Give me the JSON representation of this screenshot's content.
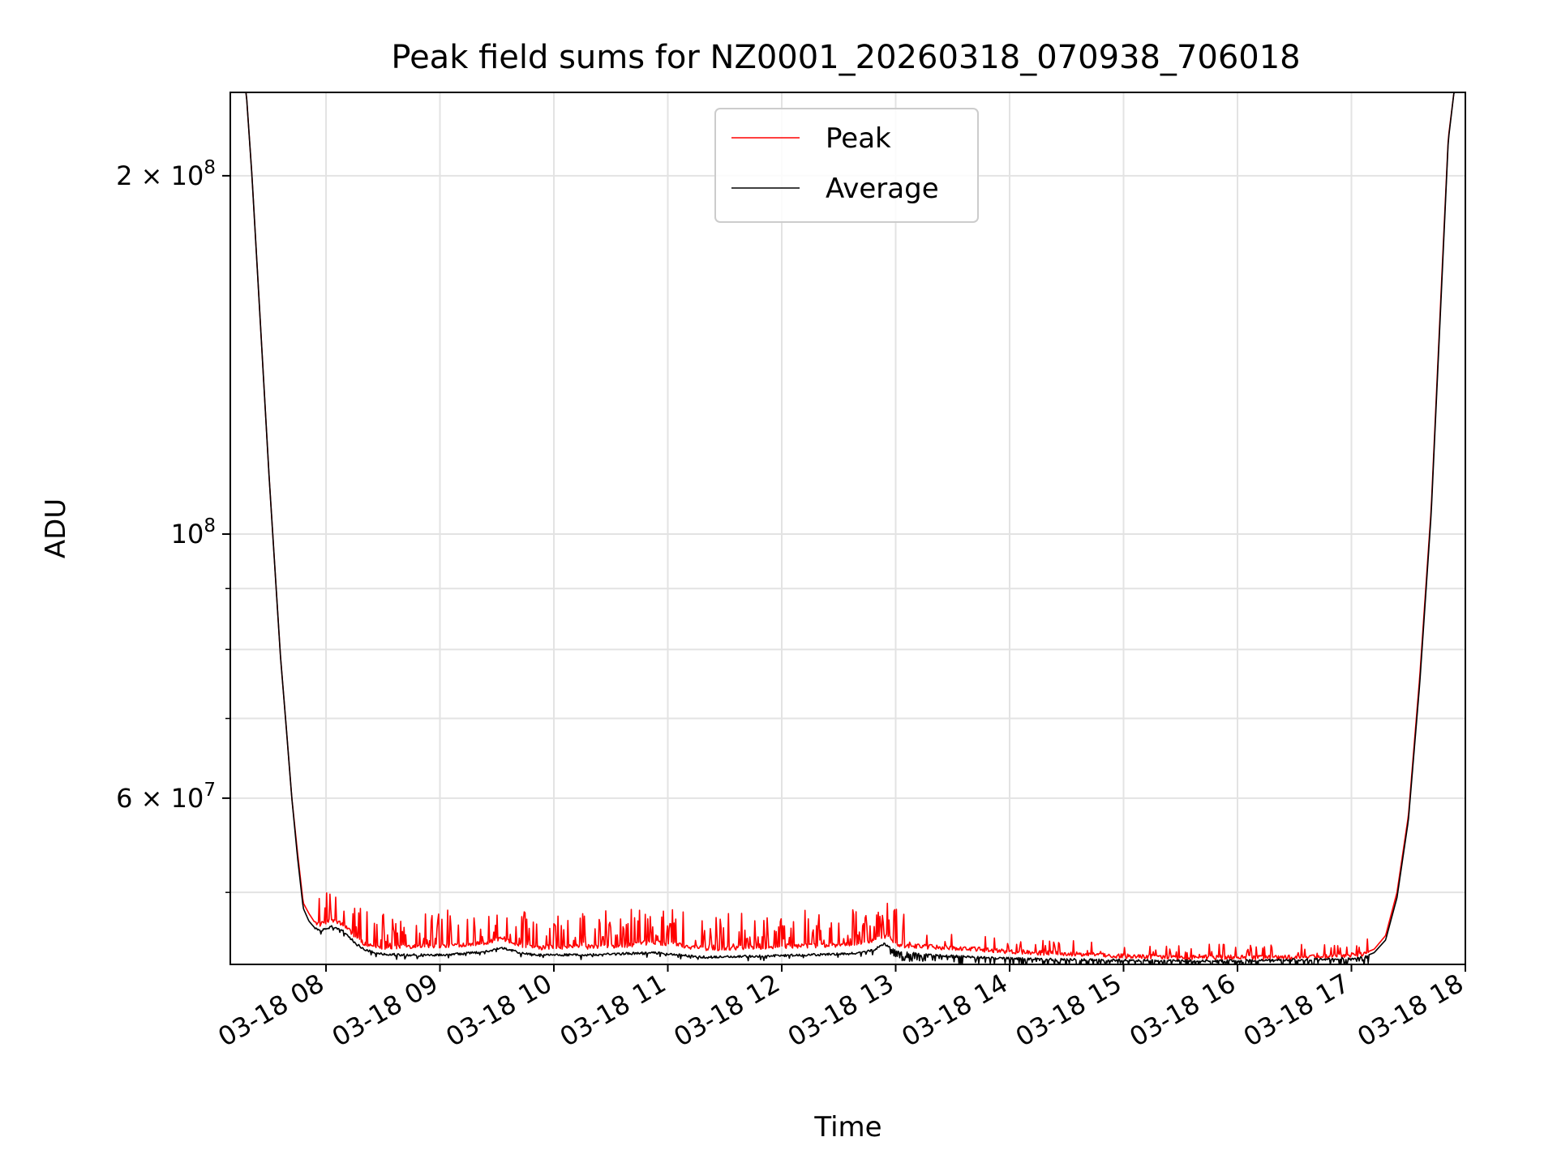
{
  "chart_data": {
    "type": "line",
    "title": "Peak field sums for NZ0001_20260318_070938_706018",
    "xlabel": "Time",
    "ylabel": "ADU",
    "yscale": "log",
    "grid": true,
    "legend_position": "upper center",
    "xlim_hours": [
      7.16,
      18.0
    ],
    "ylim": [
      43500000,
      235000000
    ],
    "x_ticks": [
      {
        "hour": 8,
        "label": "03-18 08"
      },
      {
        "hour": 9,
        "label": "03-18 09"
      },
      {
        "hour": 10,
        "label": "03-18 10"
      },
      {
        "hour": 11,
        "label": "03-18 11"
      },
      {
        "hour": 12,
        "label": "03-18 12"
      },
      {
        "hour": 13,
        "label": "03-18 13"
      },
      {
        "hour": 14,
        "label": "03-18 14"
      },
      {
        "hour": 15,
        "label": "03-18 15"
      },
      {
        "hour": 16,
        "label": "03-18 16"
      },
      {
        "hour": 17,
        "label": "03-18 17"
      },
      {
        "hour": 18,
        "label": "03-18 18"
      }
    ],
    "y_major_ticks": [
      {
        "value": 60000000,
        "mantissa": "6",
        "exponent": "7"
      },
      {
        "value": 100000000,
        "mantissa": "",
        "exponent": "8"
      },
      {
        "value": 200000000,
        "mantissa": "2",
        "exponent": "8"
      }
    ],
    "y_minor_ticks": [
      50000000,
      70000000,
      80000000,
      90000000
    ],
    "x_unit": "hours of 2026-03-18 (local)",
    "series": [
      {
        "name": "Peak",
        "color": "#ff0000",
        "jitter": "upward spikes up to ~3.5e6 ADU above the average, mostly between 08:00 and 13:00",
        "x": [
          7.16,
          7.3,
          7.35,
          7.4,
          7.5,
          7.6,
          7.65,
          7.7,
          7.75,
          7.8,
          7.85,
          7.9,
          7.95,
          8.05,
          8.15,
          8.25,
          8.35,
          8.5,
          8.65,
          8.8,
          9.0,
          9.2,
          9.4,
          9.55,
          9.7,
          9.85,
          10.0,
          10.3,
          10.6,
          10.85,
          11.0,
          11.2,
          11.35,
          11.5,
          11.8,
          12.2,
          12.6,
          12.8,
          12.9,
          12.95,
          13.05,
          13.3,
          13.7,
          14.0,
          14.5,
          15.0,
          15.5,
          16.0,
          16.3,
          16.6,
          16.8,
          17.0,
          17.1,
          17.2,
          17.3,
          17.4,
          17.5,
          17.6,
          17.7,
          17.8,
          17.85,
          17.9,
          18.0
        ],
        "values": [
          235000000,
          235000000,
          200000000,
          165000000,
          112000000,
          79000000,
          69000000,
          60000000,
          54000000,
          49000000,
          48000000,
          47200000,
          47000000,
          47400000,
          47000000,
          46000000,
          45200000,
          45000000,
          45000000,
          45100000,
          45100000,
          45200000,
          45400000,
          45700000,
          45200000,
          44900000,
          45000000,
          45000000,
          45100000,
          45400000,
          45300000,
          45000000,
          44800000,
          44900000,
          45000000,
          45100000,
          45200000,
          45500000,
          46000000,
          45600000,
          45100000,
          45000000,
          44800000,
          44600000,
          44400000,
          44200000,
          44100000,
          44100000,
          44100000,
          44100000,
          44200000,
          44300000,
          44400000,
          44800000,
          46000000,
          50000000,
          58000000,
          76000000,
          105000000,
          170000000,
          215000000,
          235000000,
          235000000
        ]
      },
      {
        "name": "Average",
        "color": "#000000",
        "jitter": "small downward noise near the baseline, mainly after 13:00",
        "x": [
          7.16,
          7.3,
          7.35,
          7.4,
          7.5,
          7.6,
          7.65,
          7.7,
          7.75,
          7.8,
          7.85,
          7.9,
          7.95,
          8.05,
          8.15,
          8.25,
          8.35,
          8.5,
          8.65,
          8.8,
          9.0,
          9.2,
          9.4,
          9.55,
          9.7,
          9.85,
          10.0,
          10.3,
          10.6,
          10.85,
          11.0,
          11.2,
          11.35,
          11.5,
          11.8,
          12.2,
          12.6,
          12.8,
          12.9,
          12.95,
          13.05,
          13.3,
          13.7,
          14.0,
          14.5,
          15.0,
          15.5,
          16.0,
          16.3,
          16.6,
          16.8,
          17.0,
          17.1,
          17.2,
          17.3,
          17.4,
          17.5,
          17.6,
          17.7,
          17.8,
          17.85,
          17.9,
          18.0
        ],
        "values": [
          235000000,
          235000000,
          200000000,
          165000000,
          112000000,
          79000000,
          69000000,
          60000000,
          53500000,
          48500000,
          47300000,
          46700000,
          46400000,
          46800000,
          46400000,
          45400000,
          44700000,
          44400000,
          44300000,
          44300000,
          44300000,
          44400000,
          44600000,
          44900000,
          44500000,
          44300000,
          44300000,
          44300000,
          44400000,
          44500000,
          44400000,
          44200000,
          44100000,
          44150000,
          44200000,
          44300000,
          44400000,
          44700000,
          45300000,
          44900000,
          44500000,
          44300000,
          44100000,
          44000000,
          43900000,
          43850000,
          43800000,
          43800000,
          43850000,
          43900000,
          43950000,
          44000000,
          44100000,
          44500000,
          45600000,
          49500000,
          57500000,
          75000000,
          104000000,
          168000000,
          214000000,
          235000000,
          235000000
        ]
      }
    ]
  }
}
